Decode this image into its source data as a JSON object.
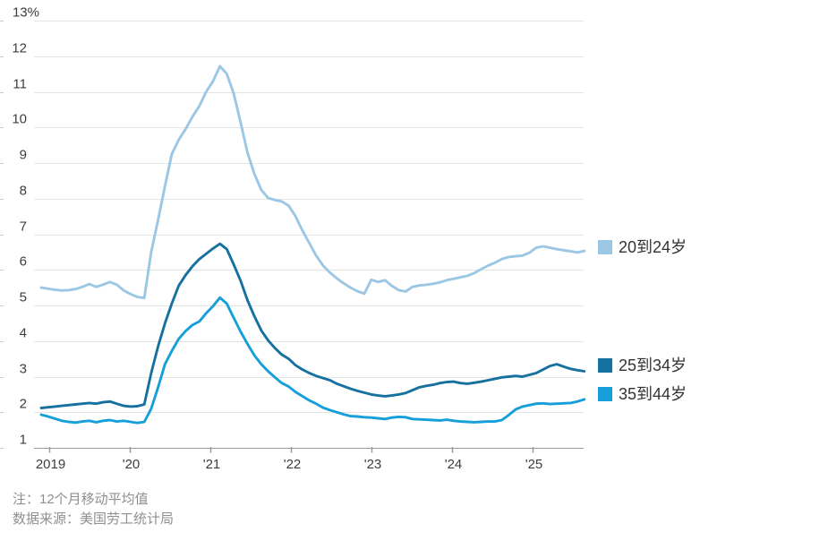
{
  "chart_data": {
    "type": "line",
    "unit": "%",
    "grid": true,
    "legend_position": "right",
    "x_axis": {
      "tick_labels": [
        "2019",
        "'20",
        "'21",
        "'22",
        "'23",
        "'24",
        "'25"
      ],
      "frequency": "monthly",
      "x_start": "2019-01"
    },
    "y_axis": {
      "min": 1,
      "max": 13,
      "step": 1,
      "tick_labels": [
        "13%",
        "12",
        "11",
        "10",
        "9",
        "8",
        "7",
        "6",
        "5",
        "4",
        "3",
        "2",
        "1"
      ]
    },
    "series": [
      {
        "name": "20到24岁",
        "color": "#9cc7e4",
        "values": [
          5.5,
          5.47,
          5.44,
          5.42,
          5.43,
          5.46,
          5.52,
          5.6,
          5.52,
          5.58,
          5.66,
          5.58,
          5.42,
          5.32,
          5.24,
          5.21,
          6.5,
          7.4,
          8.35,
          9.25,
          9.65,
          9.95,
          10.3,
          10.6,
          11.0,
          11.3,
          11.72,
          11.5,
          10.95,
          10.15,
          9.3,
          8.7,
          8.25,
          8.02,
          7.96,
          7.92,
          7.8,
          7.5,
          7.1,
          6.75,
          6.4,
          6.12,
          5.92,
          5.76,
          5.62,
          5.5,
          5.4,
          5.33,
          5.72,
          5.66,
          5.71,
          5.55,
          5.43,
          5.39,
          5.52,
          5.56,
          5.58,
          5.61,
          5.65,
          5.71,
          5.75,
          5.79,
          5.83,
          5.91,
          6.02,
          6.12,
          6.2,
          6.3,
          6.36,
          6.38,
          6.4,
          6.48,
          6.62,
          6.66,
          6.62,
          6.58,
          6.55,
          6.52,
          6.49,
          6.53
        ]
      },
      {
        "name": "25到34岁",
        "color": "#16719f",
        "values": [
          2.12,
          2.14,
          2.16,
          2.18,
          2.2,
          2.22,
          2.24,
          2.26,
          2.24,
          2.28,
          2.3,
          2.24,
          2.18,
          2.16,
          2.17,
          2.22,
          3.1,
          3.85,
          4.5,
          5.05,
          5.55,
          5.85,
          6.1,
          6.3,
          6.45,
          6.6,
          6.73,
          6.58,
          6.15,
          5.7,
          5.15,
          4.7,
          4.3,
          4.02,
          3.8,
          3.62,
          3.5,
          3.32,
          3.2,
          3.1,
          3.02,
          2.96,
          2.9,
          2.8,
          2.73,
          2.66,
          2.6,
          2.55,
          2.5,
          2.47,
          2.45,
          2.47,
          2.5,
          2.54,
          2.62,
          2.7,
          2.74,
          2.77,
          2.82,
          2.85,
          2.86,
          2.82,
          2.8,
          2.83,
          2.86,
          2.9,
          2.94,
          2.98,
          3.0,
          3.02,
          3.0,
          3.05,
          3.1,
          3.2,
          3.3,
          3.35,
          3.28,
          3.22,
          3.18,
          3.15
        ]
      },
      {
        "name": "35到44岁",
        "color": "#169fd9",
        "values": [
          1.93,
          1.88,
          1.82,
          1.76,
          1.73,
          1.71,
          1.74,
          1.76,
          1.72,
          1.76,
          1.78,
          1.74,
          1.76,
          1.73,
          1.7,
          1.73,
          2.1,
          2.7,
          3.35,
          3.72,
          4.06,
          4.28,
          4.45,
          4.55,
          4.78,
          4.98,
          5.22,
          5.05,
          4.65,
          4.27,
          3.92,
          3.6,
          3.35,
          3.15,
          2.98,
          2.82,
          2.72,
          2.57,
          2.45,
          2.33,
          2.24,
          2.13,
          2.06,
          2.0,
          1.94,
          1.89,
          1.88,
          1.86,
          1.85,
          1.83,
          1.81,
          1.85,
          1.87,
          1.86,
          1.81,
          1.8,
          1.79,
          1.78,
          1.77,
          1.79,
          1.76,
          1.74,
          1.73,
          1.72,
          1.73,
          1.74,
          1.74,
          1.78,
          1.92,
          2.08,
          2.16,
          2.2,
          2.24,
          2.25,
          2.23,
          2.24,
          2.25,
          2.26,
          2.3,
          2.36
        ]
      }
    ]
  },
  "legend": {
    "items": [
      {
        "label": "20到24岁",
        "color": "#9cc7e4"
      },
      {
        "label": "25到34岁",
        "color": "#16719f"
      },
      {
        "label": "35到44岁",
        "color": "#169fd9"
      }
    ]
  },
  "notes": {
    "note": "注：12个月移动平均值",
    "source": "数据来源：美国劳工统计局"
  },
  "colors": {
    "gridline": "#e5e5e5",
    "axis": "#9a9a9a",
    "edge_tick": "#cccccc",
    "axis_text": "#3d3d3d"
  }
}
